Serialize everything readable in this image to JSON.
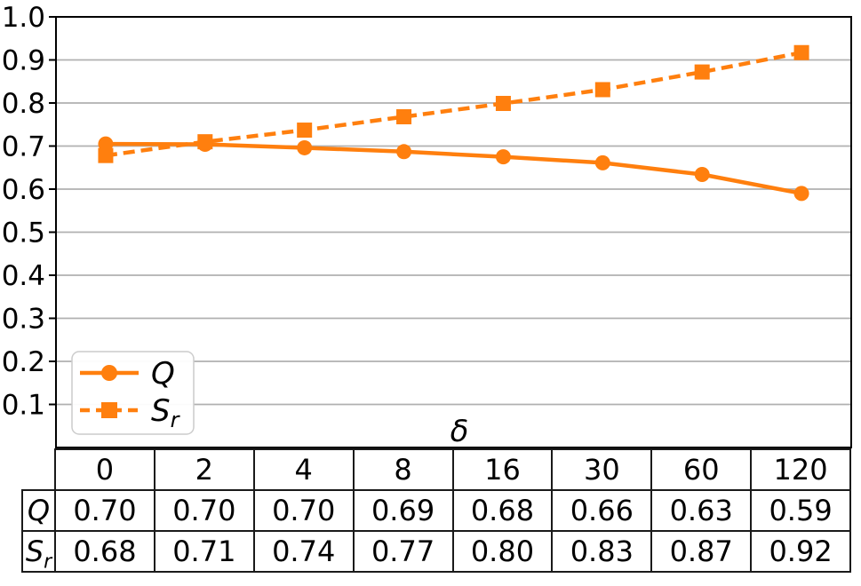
{
  "chart_data": {
    "type": "line",
    "title": "",
    "xlabel": "δ",
    "ylabel": "",
    "ylim": [
      0.0,
      1.0
    ],
    "grid": true,
    "ytick_labels": [
      "1.0",
      "0.9",
      "0.8",
      "0.7",
      "0.6",
      "0.5",
      "0.4",
      "0.3",
      "0.2",
      "0.1"
    ],
    "ytick_values": [
      1.0,
      0.9,
      0.8,
      0.7,
      0.6,
      0.5,
      0.4,
      0.3,
      0.2,
      0.1
    ],
    "x_categories": [
      "0",
      "2",
      "4",
      "8",
      "16",
      "30",
      "60",
      "120"
    ],
    "legend": {
      "position": "lower-left",
      "entries": [
        {
          "label_main": "Q",
          "label_sub": ""
        },
        {
          "label_main": "S",
          "label_sub": "r"
        }
      ]
    },
    "series": [
      {
        "name": "Q",
        "color": "#ff7f0e",
        "line_style": "solid",
        "marker": "circle",
        "values": [
          0.7,
          0.7,
          0.7,
          0.69,
          0.68,
          0.66,
          0.63,
          0.59
        ],
        "plot_values": [
          0.705,
          0.704,
          0.696,
          0.687,
          0.675,
          0.661,
          0.634,
          0.59
        ]
      },
      {
        "name": "Sr",
        "color": "#ff7f0e",
        "line_style": "dashed",
        "marker": "square",
        "values": [
          0.68,
          0.71,
          0.74,
          0.77,
          0.8,
          0.83,
          0.87,
          0.92
        ],
        "plot_values": [
          0.678,
          0.71,
          0.737,
          0.768,
          0.799,
          0.831,
          0.872,
          0.917
        ]
      }
    ],
    "table": {
      "header": [
        "0",
        "2",
        "4",
        "8",
        "16",
        "30",
        "60",
        "120"
      ],
      "rows": [
        {
          "label_main": "Q",
          "label_sub": "",
          "values": [
            "0.70",
            "0.70",
            "0.70",
            "0.69",
            "0.68",
            "0.66",
            "0.63",
            "0.59"
          ]
        },
        {
          "label_main": "S",
          "label_sub": "r",
          "values": [
            "0.68",
            "0.71",
            "0.74",
            "0.77",
            "0.80",
            "0.83",
            "0.87",
            "0.92"
          ]
        }
      ]
    }
  },
  "colors": {
    "accent": "#ff7f0e",
    "grid": "#b0b0b0",
    "axis": "#000000",
    "table_border": "#1a1a1a",
    "legend_border": "#cccccc",
    "background": "#ffffff"
  }
}
